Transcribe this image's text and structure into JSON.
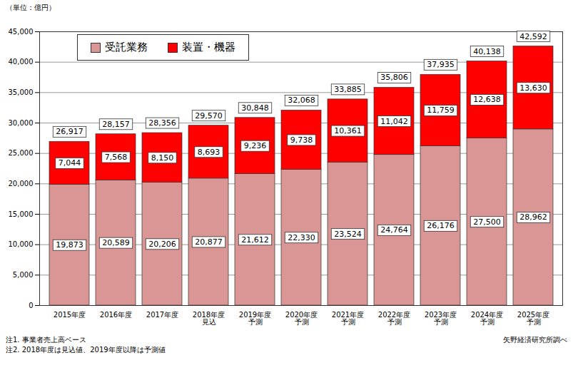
{
  "chart_data": {
    "type": "bar",
    "y_unit": "（単位：億円）",
    "categories": [
      "2015年度",
      "2016年度",
      "2017年度",
      "2018年度\n見込",
      "2019年度\n予測",
      "2020年度\n予測",
      "2021年度\n予測",
      "2022年度\n予測",
      "2023年度\n予測",
      "2024年度\n予測",
      "2025年度\n予測"
    ],
    "series": [
      {
        "name": "受託業務",
        "color": "#d99694",
        "values": [
          19873,
          20589,
          20206,
          20877,
          21612,
          22330,
          23524,
          24764,
          26176,
          27500,
          28962
        ],
        "value_labels": [
          "19,873",
          "20,589",
          "20,206",
          "20,877",
          "21,612",
          "22,330",
          "23,524",
          "24,764",
          "26,176",
          "27,500",
          "28,962"
        ]
      },
      {
        "name": "装置・機器",
        "color": "#ff0000",
        "values": [
          7044,
          7568,
          8150,
          8693,
          9236,
          9738,
          10361,
          11042,
          11759,
          12638,
          13630
        ],
        "value_labels": [
          "7,044",
          "7,568",
          "8,150",
          "8,693",
          "9,236",
          "9,738",
          "10,361",
          "11,042",
          "11,759",
          "12,638",
          "13,630"
        ]
      }
    ],
    "totals": [
      26917,
      28157,
      28356,
      29570,
      30848,
      32068,
      33885,
      35806,
      37935,
      40138,
      42592
    ],
    "total_labels": [
      "26,917",
      "28,157",
      "28,356",
      "29,570",
      "30,848",
      "32,068",
      "33,885",
      "35,806",
      "37,935",
      "40,138",
      "42,592"
    ],
    "ylim": [
      0,
      45000
    ],
    "yticks": [
      0,
      {
        "value": 5000,
        "label": "5,000"
      },
      {
        "value": 10000,
        "label": "10,000"
      },
      {
        "value": 15000,
        "label": "15,000"
      },
      {
        "value": 20000,
        "label": "20,000"
      },
      {
        "value": 25000,
        "label": "25,000"
      },
      {
        "value": 30000,
        "label": "30,000"
      },
      {
        "value": 35000,
        "label": "35,000"
      },
      {
        "value": 40000,
        "label": "40,000"
      },
      {
        "value": 45000,
        "label": "45,000"
      }
    ],
    "grid": true,
    "stacked": true,
    "data_labels": true,
    "legend": "top-left",
    "notes": [
      "注1. 事業者売上高ベース",
      "注2. 2018年度は見込値、2019年度以降は予測値"
    ],
    "source": "矢野経済研究所調べ"
  }
}
